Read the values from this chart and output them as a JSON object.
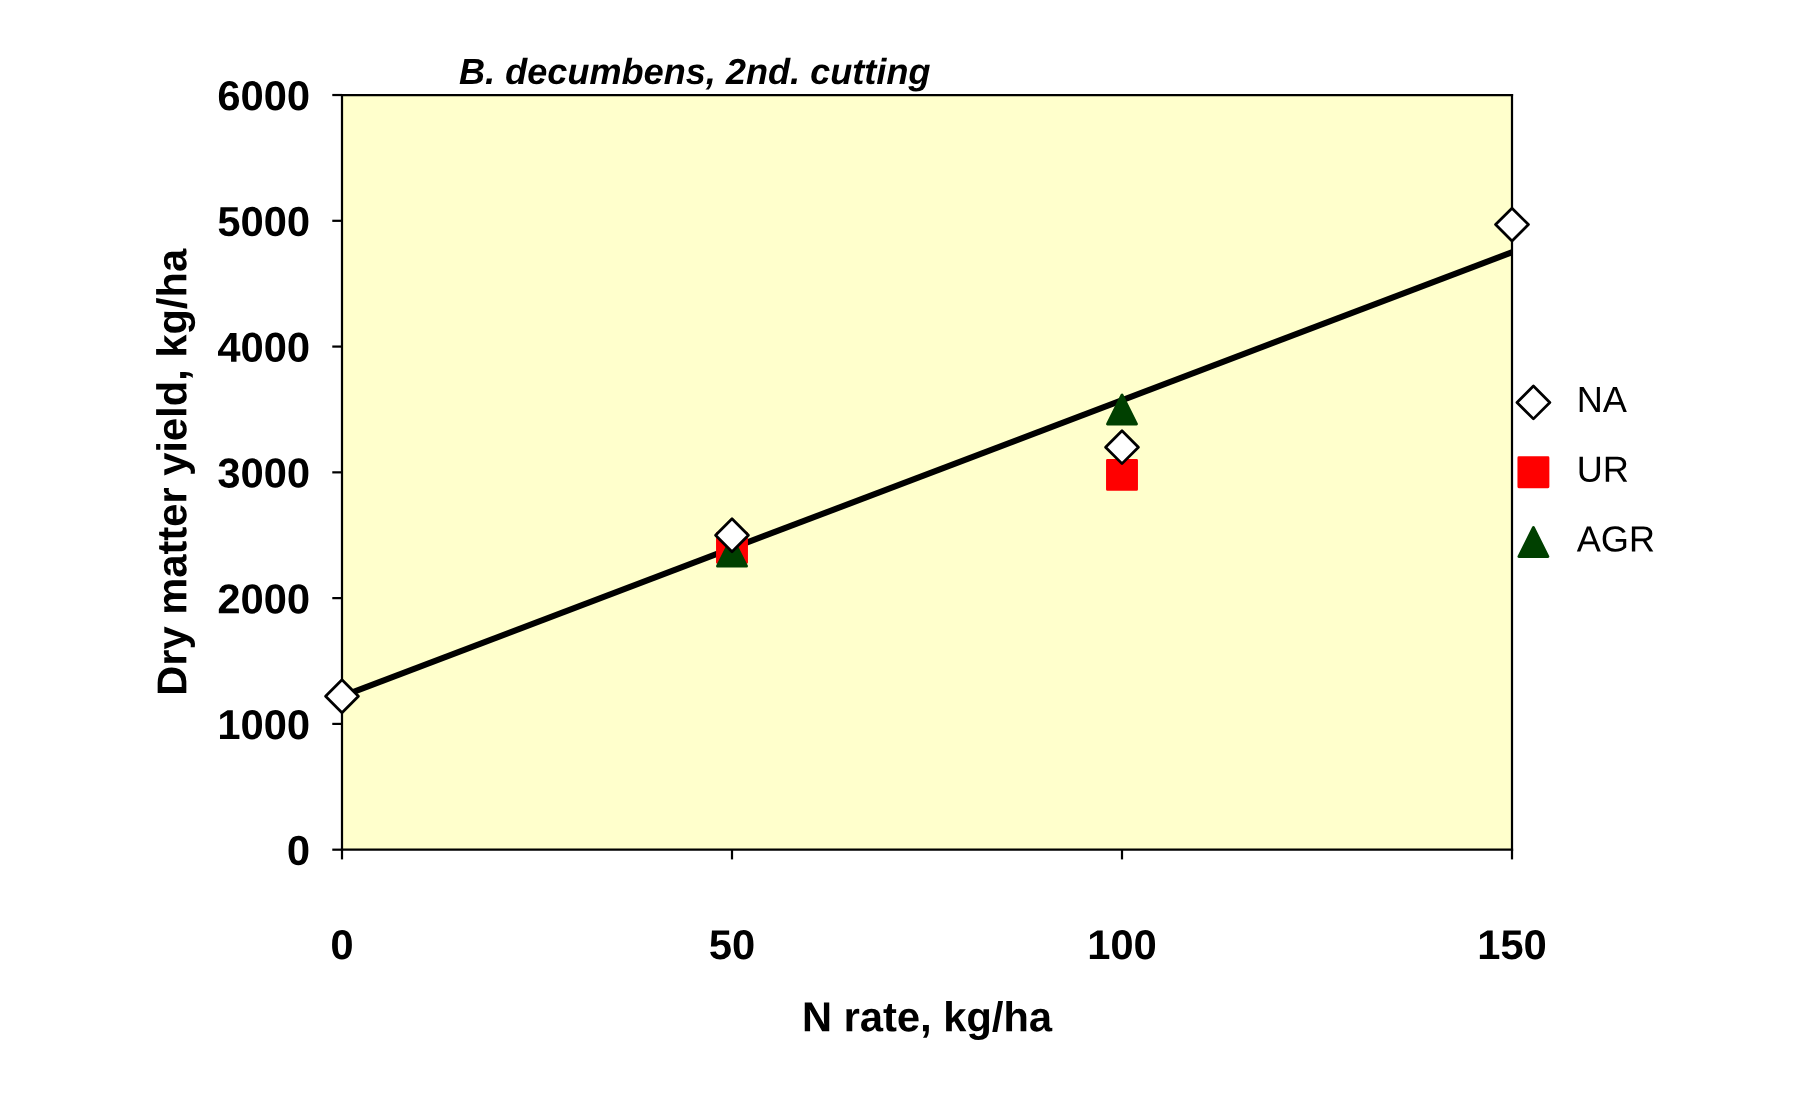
{
  "chart_data": {
    "type": "scatter",
    "title": "B. decumbens, 2nd. cutting",
    "xlabel": "N rate, kg/ha",
    "ylabel": "Dry matter yield, kg/ha",
    "xlim": [
      0,
      150
    ],
    "xticks": [
      0,
      50,
      100,
      150
    ],
    "ylim": [
      0,
      6000
    ],
    "yticks": [
      0,
      1000,
      2000,
      3000,
      4000,
      5000,
      6000
    ],
    "grid": false,
    "legend": "right",
    "series": [
      {
        "name": "NA",
        "color": "#000000",
        "marker": "diamond",
        "x": [
          0,
          50,
          100,
          150
        ],
        "values": [
          1220,
          2500,
          3200,
          4970
        ]
      },
      {
        "name": "UR",
        "color": "#ff0000",
        "marker": "square",
        "x": [
          50,
          100
        ],
        "values": [
          2400,
          2980
        ]
      },
      {
        "name": "AGR",
        "color": "#004000",
        "marker": "triangle",
        "x": [
          50,
          100
        ],
        "values": [
          2370,
          3500
        ]
      },
      {
        "type": "line",
        "color": "#000000",
        "line_style": "solid",
        "x": [
          0,
          150
        ],
        "values": [
          1220,
          4750
        ]
      }
    ]
  }
}
